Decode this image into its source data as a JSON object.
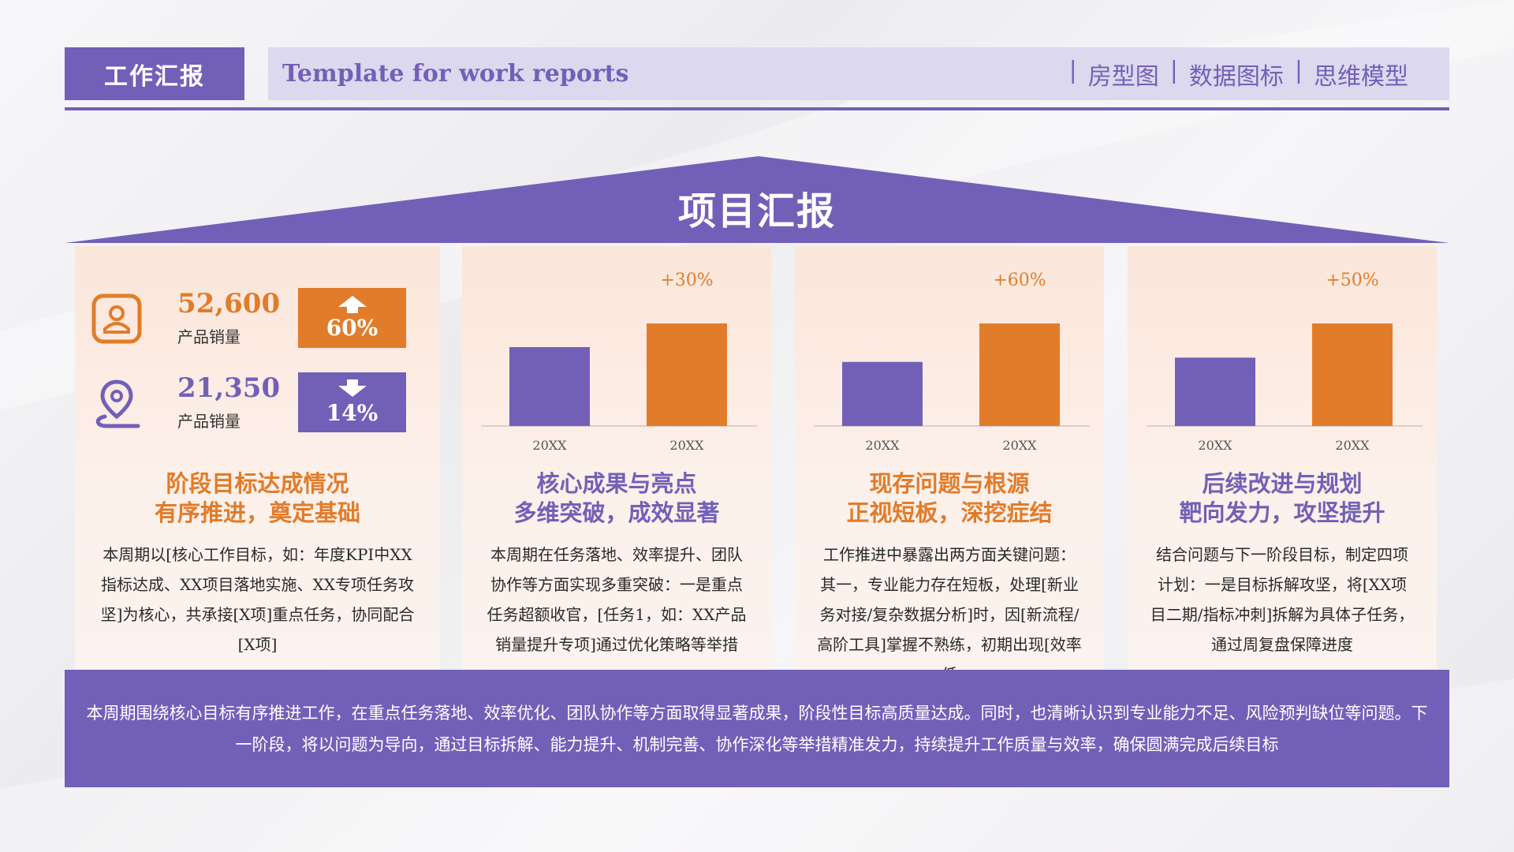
{
  "header": {
    "tag": "工作汇报",
    "subtitle": "Template for work reports",
    "nav": [
      {
        "sep": "|",
        "label": "房型图"
      },
      {
        "sep": "|",
        "label": "数据图标"
      },
      {
        "sep": "|",
        "label": "思维模型"
      }
    ]
  },
  "roof": {
    "title": "项目汇报"
  },
  "colors": {
    "purple": "#7260b8",
    "orange": "#e27c2a",
    "panel": "#fbe9df"
  },
  "stats": [
    {
      "value": "52,600",
      "label": "产品销量",
      "change": "60%",
      "direction": "up",
      "icon": "person-badge-icon"
    },
    {
      "value": "21,350",
      "label": "产品销量",
      "change": "14%",
      "direction": "down",
      "icon": "location-pin-icon"
    }
  ],
  "panels": [
    {
      "title_line1": "阶段目标达成情况",
      "title_line2": "有序推进，奠定基础",
      "text": "本周期以[核心工作目标，如：年度KPI中XX指标达成、XX项目落地实施、XX专项任务攻坚]为核心，共承接[X项]重点任务，协同配合[X项]"
    },
    {
      "title_line1": "核心成果与亮点",
      "title_line2": "多维突破，成效显著",
      "text": "本周期在任务落地、效率提升、团队协作等方面实现多重突破：一是重点任务超额收官，[任务1，如：XX产品销量提升专项]通过优化策略等举措"
    },
    {
      "title_line1": "现存问题与根源",
      "title_line2": "正视短板，深挖症结",
      "text": "工作推进中暴露出两方面关键问题：其一，专业能力存在短板，处理[新业务对接/复杂数据分析]时，因[新流程/高阶工具]掌握不熟练，初期出现[效率低"
    },
    {
      "title_line1": "后续改进与规划",
      "title_line2": "靶向发力，攻坚提升",
      "text": "结合问题与下一阶段目标，制定四项计划：一是目标拆解攻坚，将[XX项目二期/指标冲刺]拆解为具体子任务，通过周复盘保障进度"
    }
  ],
  "chart_data": [
    {
      "type": "bar",
      "categories": [
        "20XX",
        "20XX"
      ],
      "values": [
        1.0,
        1.3
      ],
      "annotation": "+30%",
      "colors": [
        "#7260b8",
        "#e27c2a"
      ]
    },
    {
      "type": "bar",
      "categories": [
        "20XX",
        "20XX"
      ],
      "values": [
        1.0,
        1.6
      ],
      "annotation": "+60%",
      "colors": [
        "#7260b8",
        "#e27c2a"
      ]
    },
    {
      "type": "bar",
      "categories": [
        "20XX",
        "20XX"
      ],
      "values": [
        1.0,
        1.5
      ],
      "annotation": "+50%",
      "colors": [
        "#7260b8",
        "#e27c2a"
      ]
    }
  ],
  "footer": {
    "text": "本周期围绕核心目标有序推进工作，在重点任务落地、效率优化、团队协作等方面取得显著成果，阶段性目标高质量达成。同时，也清晰认识到专业能力不足、风险预判缺位等问题。下一阶段，将以问题为导向，通过目标拆解、能力提升、机制完善、协作深化等举措精准发力，持续提升工作质量与效率，确保圆满完成后续目标"
  }
}
